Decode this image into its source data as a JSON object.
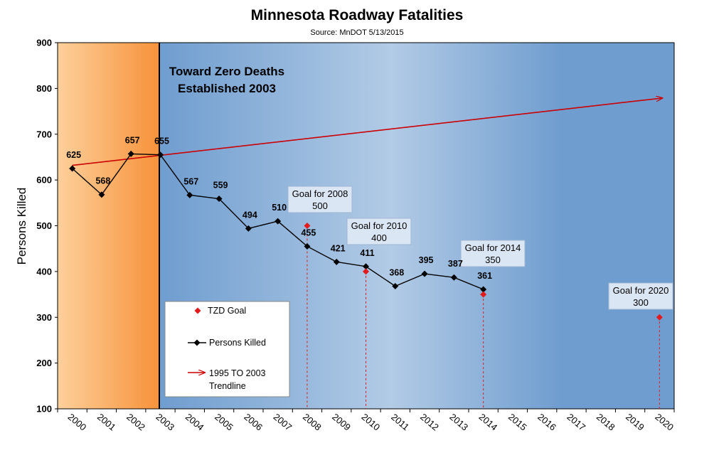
{
  "chart_data": {
    "type": "line",
    "title": "Minnesota Roadway Fatalities",
    "subtitle": "Source:  MnDOT 5/13/2015",
    "xlabel": "",
    "ylabel": "Persons Killed",
    "ylim": [
      100,
      900
    ],
    "y_ticks": [
      100,
      200,
      300,
      400,
      500,
      600,
      700,
      800,
      900
    ],
    "categories": [
      "2000",
      "2001",
      "2002",
      "2003",
      "2004",
      "2005",
      "2006",
      "2007",
      "2008",
      "2009",
      "2010",
      "2011",
      "2012",
      "2013",
      "2014",
      "2015",
      "2016",
      "2017",
      "2018",
      "2019",
      "2020"
    ],
    "series": [
      {
        "name": "Persons Killed",
        "color": "#000000",
        "x": [
          "2000",
          "2001",
          "2002",
          "2003",
          "2004",
          "2005",
          "2006",
          "2007",
          "2008",
          "2009",
          "2010",
          "2011",
          "2012",
          "2013",
          "2014"
        ],
        "values": [
          625,
          568,
          657,
          655,
          567,
          559,
          494,
          510,
          455,
          421,
          411,
          368,
          395,
          387,
          361
        ],
        "labels": [
          "625",
          "568",
          "657",
          "655",
          "567",
          "559",
          "494",
          "510",
          "455",
          "421",
          "411",
          "368",
          "395",
          "387",
          "361"
        ]
      },
      {
        "name": "TZD Goal",
        "color": "#e31a1c",
        "x": [
          "2008",
          "2010",
          "2014",
          "2020"
        ],
        "values": [
          500,
          400,
          350,
          300
        ]
      },
      {
        "name": "1995 TO 2003 Trendline",
        "color": "#cc0000",
        "x": [
          "2000",
          "2020"
        ],
        "values": [
          632,
          779
        ]
      }
    ],
    "goal_callouts": [
      {
        "line1": "Goal for 2008",
        "line2": "500"
      },
      {
        "line1": "Goal for 2010",
        "line2": "400"
      },
      {
        "line1": "Goal for 2014",
        "line2": "350"
      },
      {
        "line1": "Goal for 2020",
        "line2": "300"
      }
    ],
    "annotation": [
      "Toward Zero Deaths",
      "Established 2003"
    ],
    "legend": [
      "TZD Goal",
      "Persons Killed",
      "1995 TO 2003",
      "Trendline"
    ],
    "legend_position": "bottom-left",
    "colors": {
      "pre_tzd_light": "#fdd09b",
      "pre_tzd_dark": "#f7923a",
      "bg_dark_blue": "#6f9dcf",
      "bg_light_blue": "#b2cbe6",
      "trend": "#cc0000",
      "goal": "#e31a1c",
      "callout_fill": "#dbe6f4"
    }
  }
}
